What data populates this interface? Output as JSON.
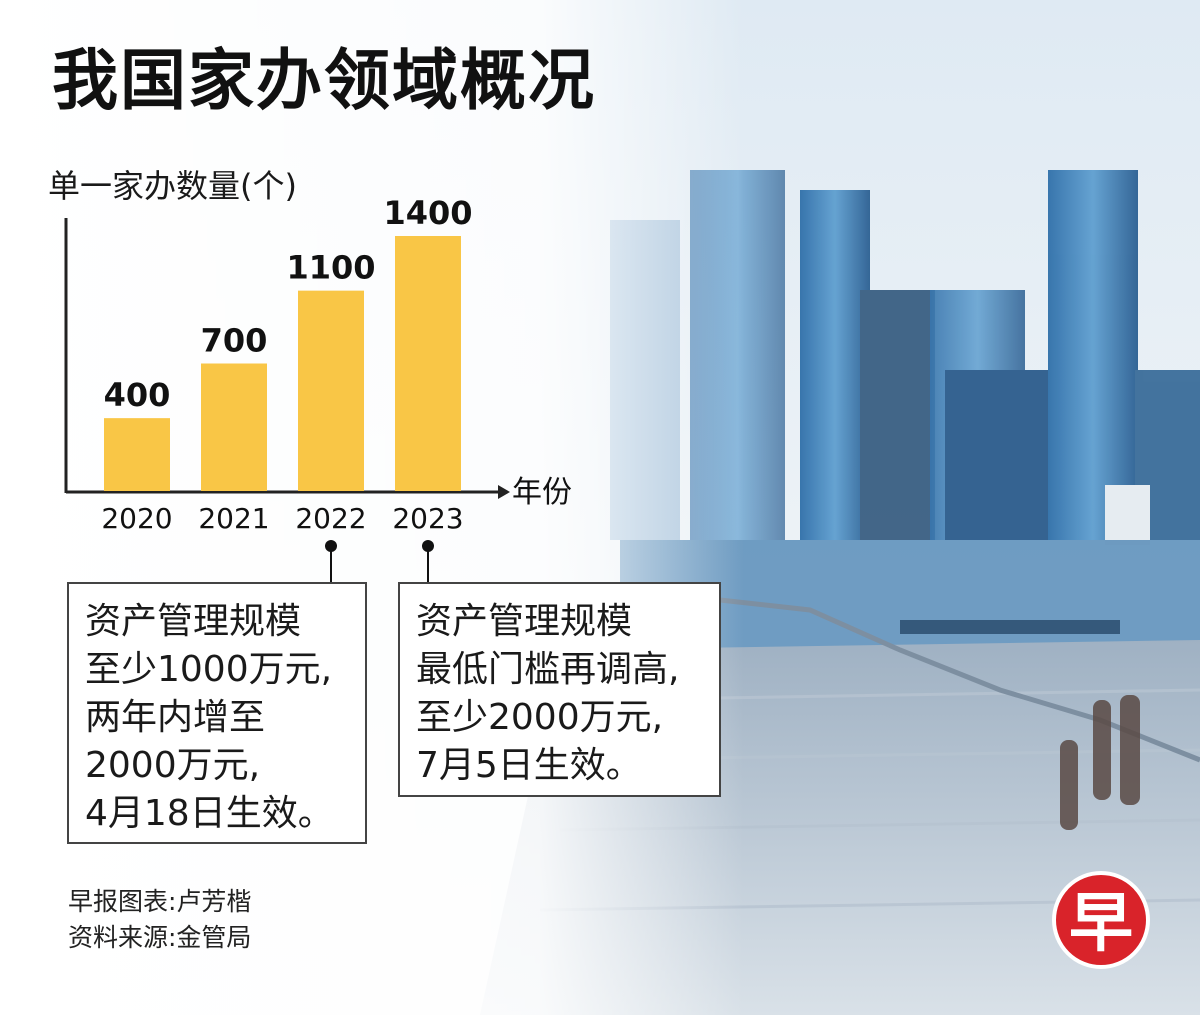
{
  "title": "我国家办领域概况",
  "colors": {
    "bar": "#f9c646",
    "axis": "#222222",
    "logo": "#d9232a"
  },
  "chart_data": {
    "type": "bar",
    "ylabel": "单一家办数量(个)",
    "xlabel": "年份",
    "categories": [
      "2020",
      "2021",
      "2022",
      "2023"
    ],
    "values": [
      400,
      700,
      1100,
      1400
    ],
    "data_labels": [
      "400",
      "700",
      "1100",
      "1400"
    ],
    "ylim": [
      0,
      1400
    ],
    "grid": false
  },
  "callouts": [
    {
      "year": "2022",
      "lines": [
        "资产管理规模",
        "至少1000万元,",
        "两年内增至",
        "2000万元,",
        "4月18日生效。"
      ]
    },
    {
      "year": "2023",
      "lines": [
        "资产管理规模",
        "最低门槛再调高,",
        "至少2000万元,",
        "7月5日生效。"
      ]
    }
  ],
  "source": {
    "chart_by": "早报图表:卢芳楷",
    "data_source": "资料来源:金管局"
  },
  "logo": {
    "char": "早",
    "icon": "zaobao-logo-icon"
  }
}
